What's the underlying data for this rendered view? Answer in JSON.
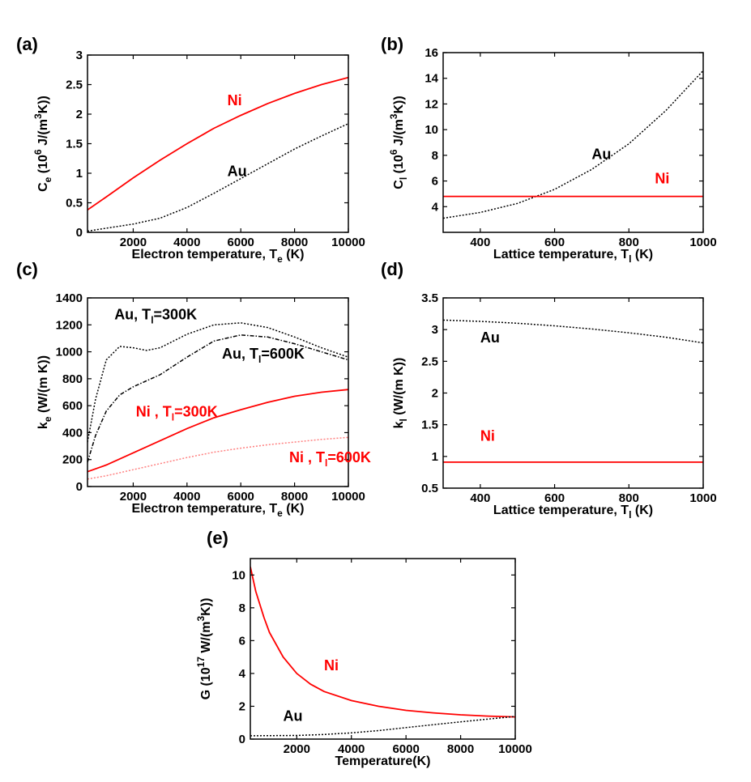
{
  "colors": {
    "ni": "#ff0000",
    "ni_light": "#ff8080",
    "au": "#000000"
  },
  "chart_data": [
    {
      "id": "a",
      "panel_label": "(a)",
      "type": "line",
      "xlim": [
        300,
        10000
      ],
      "ylim": [
        0,
        3
      ],
      "xticks": [
        2000,
        4000,
        6000,
        8000,
        10000
      ],
      "xtick_labels": [
        "2000",
        "4000",
        "6000",
        "8000",
        "10000"
      ],
      "yticks": [
        0,
        0.5,
        1,
        1.5,
        2,
        2.5,
        3
      ],
      "ytick_labels": [
        "0",
        "0.5",
        "1",
        "1.5",
        "2",
        "2.5",
        "3"
      ],
      "xlabel": {
        "main": "Electron temperature, T",
        "sub": "e",
        "tail": " (K)"
      },
      "ylabel": {
        "p1": "C",
        "sub": "e",
        "p2": " (10",
        "sup1": "6",
        "p3": " J/(m",
        "sup2": "3",
        "p4": "K))"
      },
      "series": [
        {
          "name": "Ni",
          "color": "#ff0000",
          "style": "solid",
          "x": [
            300,
            1000,
            2000,
            3000,
            4000,
            5000,
            6000,
            7000,
            8000,
            9000,
            10000
          ],
          "y": [
            0.38,
            0.6,
            0.92,
            1.22,
            1.5,
            1.76,
            1.98,
            2.18,
            2.35,
            2.5,
            2.62
          ]
        },
        {
          "name": "Au",
          "color": "#000000",
          "style": "dotted",
          "x": [
            300,
            1000,
            2000,
            3000,
            4000,
            5000,
            6000,
            7000,
            8000,
            9000,
            10000
          ],
          "y": [
            0.02,
            0.07,
            0.14,
            0.24,
            0.42,
            0.66,
            0.91,
            1.16,
            1.41,
            1.63,
            1.84
          ]
        }
      ],
      "annotations": [
        {
          "text": "Ni",
          "color": "#ff0000",
          "x": 5500,
          "y": 2.15
        },
        {
          "text": "Au",
          "color": "#000000",
          "x": 5500,
          "y": 0.95
        }
      ]
    },
    {
      "id": "b",
      "panel_label": "(b)",
      "type": "line",
      "xlim": [
        300,
        1000
      ],
      "ylim": [
        2,
        16
      ],
      "xticks": [
        400,
        600,
        800,
        1000
      ],
      "xtick_labels": [
        "400",
        "600",
        "800",
        "1000"
      ],
      "yticks": [
        4,
        6,
        8,
        10,
        12,
        14,
        16
      ],
      "ytick_labels": [
        "4",
        "6",
        "8",
        "10",
        "12",
        "14",
        "16"
      ],
      "xlabel": {
        "main": "Lattice temperature, T",
        "sub": "l",
        "tail": " (K)"
      },
      "ylabel": {
        "p1": "C",
        "sub": "l",
        "p2": " (10",
        "sup1": "6",
        "p3": " J/(m",
        "sup2": "3",
        "p4": "K))"
      },
      "series": [
        {
          "name": "Au",
          "color": "#000000",
          "style": "dotted",
          "x": [
            300,
            400,
            500,
            600,
            700,
            800,
            900,
            1000
          ],
          "y": [
            3.1,
            3.55,
            4.25,
            5.35,
            6.9,
            8.9,
            11.5,
            14.6
          ]
        },
        {
          "name": "Ni",
          "color": "#ff0000",
          "style": "solid",
          "x": [
            300,
            1000
          ],
          "y": [
            4.8,
            4.8
          ]
        }
      ],
      "annotations": [
        {
          "text": "Au",
          "color": "#000000",
          "x": 700,
          "y": 7.7
        },
        {
          "text": "Ni",
          "color": "#ff0000",
          "x": 870,
          "y": 5.8
        }
      ]
    },
    {
      "id": "c",
      "panel_label": "(c)",
      "type": "line",
      "xlim": [
        300,
        10000
      ],
      "ylim": [
        0,
        1400
      ],
      "xticks": [
        2000,
        4000,
        6000,
        8000,
        10000
      ],
      "xtick_labels": [
        "2000",
        "4000",
        "6000",
        "8000",
        "10000"
      ],
      "yticks": [
        0,
        200,
        400,
        600,
        800,
        1000,
        1200,
        1400
      ],
      "ytick_labels": [
        "0",
        "200",
        "400",
        "600",
        "800",
        "1000",
        "1200",
        "1400"
      ],
      "xlabel": {
        "main": "Electron temperature, T",
        "sub": "e",
        "tail": " (K)"
      },
      "ylabel": {
        "p1": "k",
        "sub": "e",
        "p2": " (W/(m K))",
        "sup1": "",
        "p3": "",
        "sup2": "",
        "p4": ""
      },
      "series": [
        {
          "name": "Au, Tl=300K",
          "color": "#000000",
          "style": "dotted",
          "x": [
            300,
            600,
            1000,
            1500,
            2000,
            2500,
            3000,
            4000,
            5000,
            6000,
            7000,
            8000,
            9000,
            10000
          ],
          "y": [
            330,
            650,
            940,
            1040,
            1030,
            1010,
            1030,
            1130,
            1200,
            1215,
            1180,
            1110,
            1030,
            960
          ]
        },
        {
          "name": "Au, Tl=600K",
          "color": "#000000",
          "style": "dashdot",
          "x": [
            300,
            600,
            1000,
            1500,
            2000,
            3000,
            4000,
            5000,
            6000,
            7000,
            8000,
            9000,
            10000
          ],
          "y": [
            180,
            380,
            560,
            680,
            740,
            830,
            960,
            1080,
            1125,
            1110,
            1060,
            1000,
            940
          ]
        },
        {
          "name": "Ni, Tl=300K",
          "color": "#ff0000",
          "style": "solid",
          "x": [
            300,
            1000,
            2000,
            3000,
            4000,
            5000,
            6000,
            7000,
            8000,
            9000,
            10000
          ],
          "y": [
            110,
            160,
            250,
            340,
            430,
            510,
            570,
            625,
            670,
            700,
            720
          ]
        },
        {
          "name": "Ni, Tl=600K",
          "color": "#ff8080",
          "style": "dotted",
          "x": [
            300,
            1000,
            2000,
            3000,
            4000,
            5000,
            6000,
            7000,
            8000,
            9000,
            10000
          ],
          "y": [
            55,
            80,
            125,
            170,
            215,
            255,
            285,
            310,
            330,
            350,
            365
          ]
        }
      ],
      "annotations": [
        {
          "text": "Au, T",
          "sub": "l",
          "tail": "=300K",
          "color": "#000000",
          "x": 1300,
          "y": 1240
        },
        {
          "text": "Au, T",
          "sub": "l",
          "tail": "=600K",
          "color": "#000000",
          "x": 5300,
          "y": 950
        },
        {
          "text": "Ni , T",
          "sub": "l",
          "tail": "=300K",
          "color": "#ff0000",
          "x": 2100,
          "y": 520
        },
        {
          "text": "Ni , T",
          "sub": "l",
          "tail": "=600K",
          "color": "#ff0000",
          "x": 7800,
          "y": 180
        }
      ]
    },
    {
      "id": "d",
      "panel_label": "(d)",
      "type": "line",
      "xlim": [
        300,
        1000
      ],
      "ylim": [
        0.5,
        3.5
      ],
      "xticks": [
        400,
        600,
        800,
        1000
      ],
      "xtick_labels": [
        "400",
        "600",
        "800",
        "1000"
      ],
      "yticks": [
        0.5,
        1,
        1.5,
        2,
        2.5,
        3,
        3.5
      ],
      "ytick_labels": [
        "0.5",
        "1",
        "1.5",
        "2",
        "2.5",
        "3",
        "3.5"
      ],
      "xlabel": {
        "main": "Lattice temperature, T",
        "sub": "l",
        "tail": " (K)"
      },
      "ylabel": {
        "p1": "k",
        "sub": "l",
        "p2": " (W/(m K))",
        "sup1": "",
        "p3": "",
        "sup2": "",
        "p4": ""
      },
      "series": [
        {
          "name": "Au",
          "color": "#000000",
          "style": "dotted",
          "x": [
            300,
            400,
            500,
            600,
            700,
            800,
            900,
            1000
          ],
          "y": [
            3.15,
            3.13,
            3.1,
            3.06,
            3.01,
            2.95,
            2.88,
            2.79
          ]
        },
        {
          "name": "Ni",
          "color": "#ff0000",
          "style": "solid",
          "x": [
            300,
            1000
          ],
          "y": [
            0.91,
            0.91
          ]
        }
      ],
      "annotations": [
        {
          "text": "Au",
          "color": "#000000",
          "x": 400,
          "y": 2.8
        },
        {
          "text": "Ni",
          "color": "#ff0000",
          "x": 400,
          "y": 1.25
        }
      ]
    },
    {
      "id": "e",
      "panel_label": "(e)",
      "type": "line",
      "xlim": [
        300,
        10000
      ],
      "ylim": [
        0,
        11
      ],
      "xticks": [
        2000,
        4000,
        6000,
        8000,
        10000
      ],
      "xtick_labels": [
        "2000",
        "4000",
        "6000",
        "8000",
        "10000"
      ],
      "yticks": [
        0,
        2,
        4,
        6,
        8,
        10
      ],
      "ytick_labels": [
        "0",
        "2",
        "4",
        "6",
        "8",
        "10"
      ],
      "xlabel": {
        "main": "Temperature(K)",
        "sub": "",
        "tail": ""
      },
      "ylabel": {
        "p1": "G (10",
        "sub": "",
        "p2": "",
        "sup1": "17",
        "p3": " W/(m",
        "sup2": "3",
        "p4": "K))"
      },
      "series": [
        {
          "name": "Ni",
          "color": "#ff0000",
          "style": "solid",
          "x": [
            300,
            500,
            800,
            1000,
            1500,
            2000,
            2500,
            3000,
            4000,
            5000,
            6000,
            7000,
            8000,
            9000,
            10000
          ],
          "y": [
            10.5,
            9.0,
            7.4,
            6.5,
            5.0,
            4.0,
            3.35,
            2.9,
            2.35,
            2.0,
            1.75,
            1.6,
            1.48,
            1.4,
            1.35
          ]
        },
        {
          "name": "Au",
          "color": "#000000",
          "style": "dotted",
          "x": [
            300,
            2000,
            3000,
            4000,
            5000,
            6000,
            7000,
            8000,
            9000,
            10000
          ],
          "y": [
            0.2,
            0.22,
            0.28,
            0.38,
            0.52,
            0.7,
            0.88,
            1.05,
            1.22,
            1.38
          ]
        }
      ],
      "annotations": [
        {
          "text": "Ni",
          "color": "#ff0000",
          "x": 3000,
          "y": 4.2
        },
        {
          "text": "Au",
          "color": "#000000",
          "x": 1500,
          "y": 1.1
        }
      ]
    }
  ]
}
